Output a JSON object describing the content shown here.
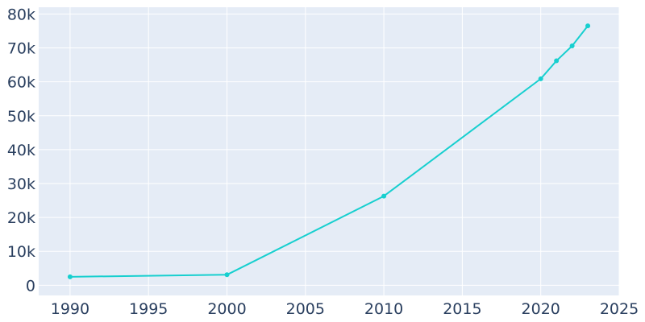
{
  "chart_data": {
    "type": "line",
    "title": "",
    "xlabel": "",
    "ylabel": "",
    "x": [
      1990,
      2000,
      2010,
      2020,
      2021,
      2022,
      2023
    ],
    "series": [
      {
        "values": [
          2500,
          3100,
          26300,
          60900,
          66200,
          70600,
          76500
        ]
      }
    ],
    "xlim": [
      1988,
      2025
    ],
    "ylim": [
      -3000,
      82000
    ],
    "x_ticks": [
      1990,
      1995,
      2000,
      2005,
      2010,
      2015,
      2020,
      2025
    ],
    "x_tick_labels": [
      "1990",
      "1995",
      "2000",
      "2005",
      "2010",
      "2015",
      "2020",
      "2025"
    ],
    "y_ticks": [
      0,
      10000,
      20000,
      30000,
      40000,
      50000,
      60000,
      70000,
      80000
    ],
    "y_tick_labels": [
      "0",
      "10k",
      "20k",
      "30k",
      "40k",
      "50k",
      "60k",
      "70k",
      "80k"
    ],
    "grid": true,
    "colors": {
      "line": "#17cfcf",
      "plot_background": "#e5ecf6",
      "grid": "#ffffff",
      "tick_text": "#2a3f5f"
    }
  }
}
